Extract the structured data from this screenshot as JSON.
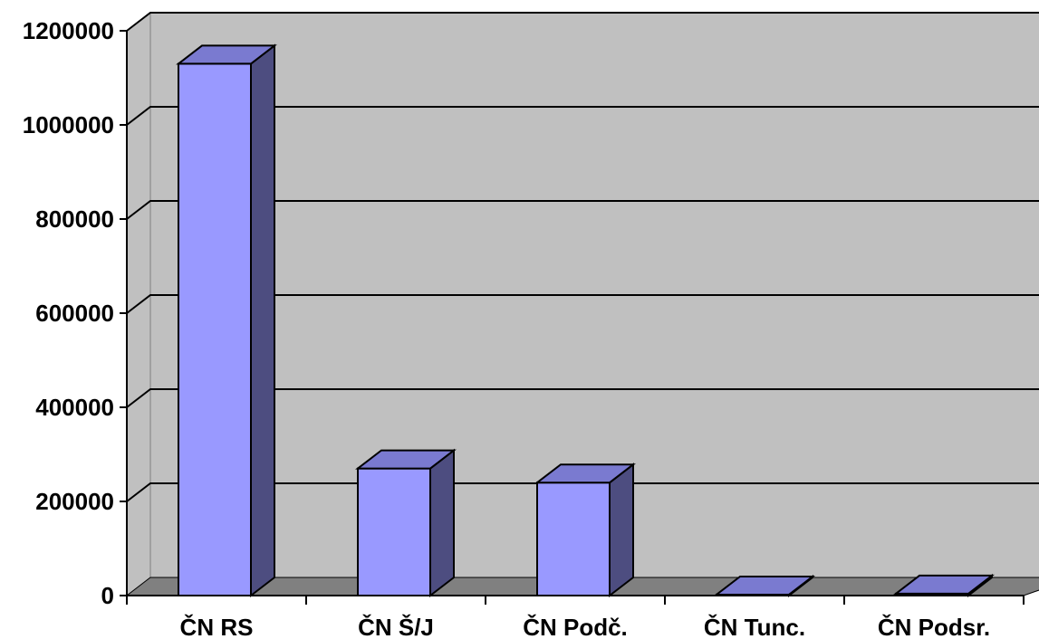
{
  "chart_data": {
    "type": "bar",
    "categories": [
      "ČN RS",
      "ČN Š/J",
      "ČN Podč.",
      "ČN Tunc.",
      "ČN Podsr."
    ],
    "values": [
      1130000,
      270000,
      240000,
      2000,
      4000
    ],
    "ylim": [
      0,
      1200000
    ],
    "yticks": [
      0,
      200000,
      400000,
      600000,
      800000,
      1000000,
      1200000
    ],
    "ytick_labels": [
      "0",
      "200000",
      "400000",
      "600000",
      "800000",
      "1000000",
      "1200000"
    ],
    "grid": true,
    "style": "3d-column"
  },
  "colors": {
    "wall": "#c0c0c0",
    "floor": "#808080",
    "bar_front": "#9999ff",
    "bar_top": "#7a7ad0",
    "bar_side": "#4d4d80",
    "gridline": "#000000"
  }
}
